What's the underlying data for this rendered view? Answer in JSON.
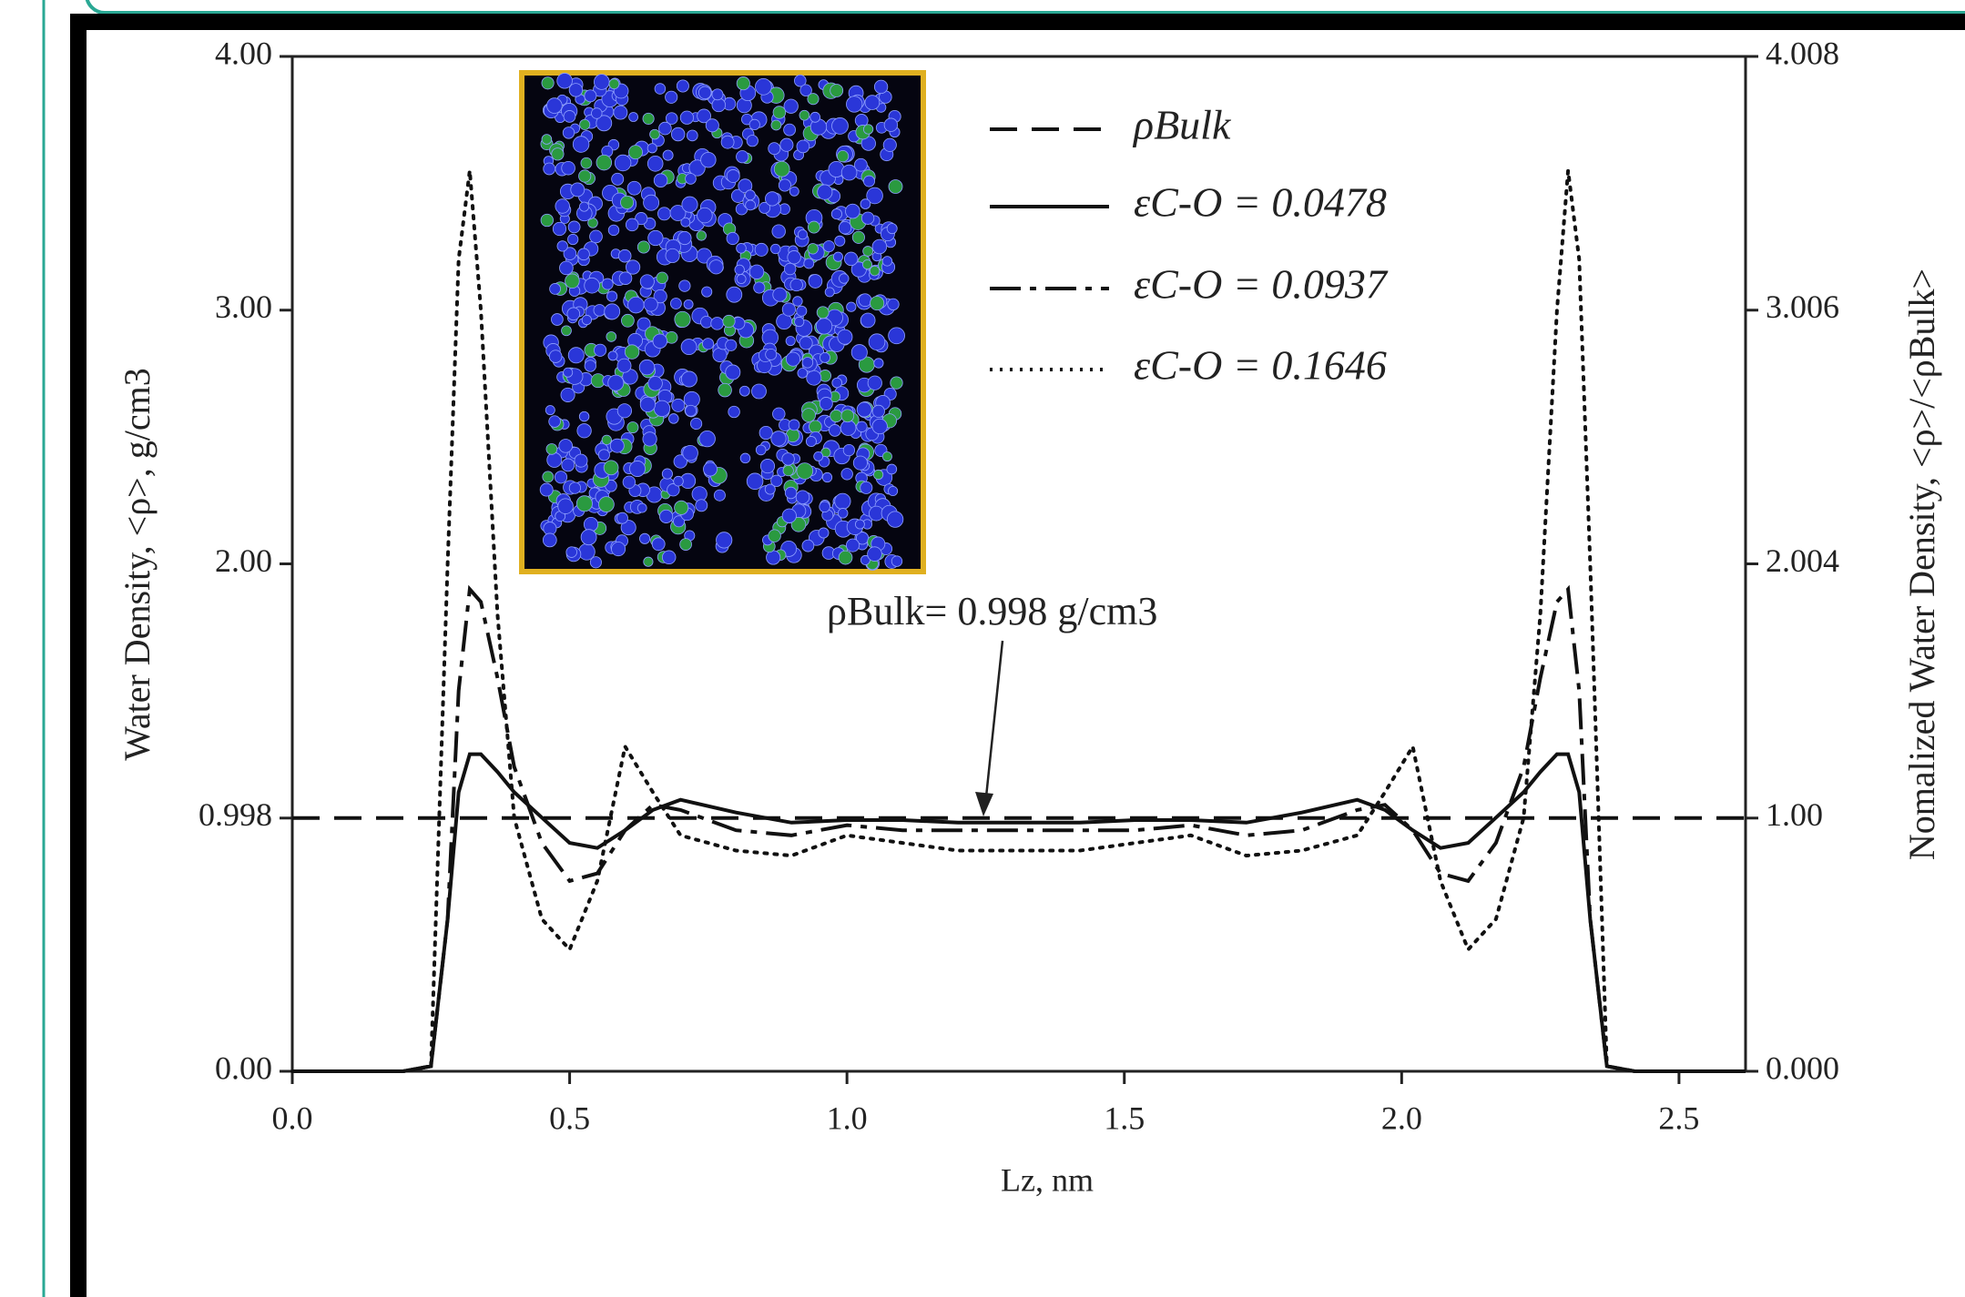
{
  "chart_data": {
    "type": "line",
    "xlabel": "Lz, nm",
    "ylabel": "Water Density, <ρ>, g/cm3",
    "y2label": "Nomalized Water Density, <ρ>/<ρBulk>",
    "annotation": "ρBulk= 0.998 g/cm3",
    "xlim": [
      0,
      2.62
    ],
    "xticks": [
      {
        "value": 0,
        "label": "0.0"
      },
      0.5,
      {
        "value": 1,
        "label": "1.0"
      },
      1.5,
      {
        "value": 2,
        "label": "2.0"
      },
      2.5
    ],
    "ylim": [
      0,
      4
    ],
    "yticks": [
      {
        "value": 0,
        "label": "0.00"
      },
      0.998,
      {
        "value": 2,
        "label": "2.00"
      },
      {
        "value": 3,
        "label": "3.00"
      },
      {
        "value": 4,
        "label": "4.00"
      }
    ],
    "y2lim": [
      0,
      4.008
    ],
    "y2ticks": [
      {
        "value": 0,
        "label": "0.000"
      },
      {
        "value": 1,
        "label": "1.00"
      },
      2.004,
      3.006,
      4.008
    ],
    "x": [
      0,
      0.1,
      0.2,
      0.25,
      0.28,
      0.3,
      0.32,
      0.34,
      0.37,
      0.4,
      0.45,
      0.5,
      0.55,
      0.6,
      0.65,
      0.7,
      0.8,
      0.9,
      1.0,
      1.1,
      1.2,
      1.3,
      1.42,
      1.52,
      1.62,
      1.72,
      1.82,
      1.92,
      1.97,
      2.02,
      2.07,
      2.12,
      2.17,
      2.22,
      2.25,
      2.28,
      2.3,
      2.32,
      2.34,
      2.37,
      2.42,
      2.52,
      2.62
    ],
    "series": [
      {
        "name": "ρBulk",
        "color": "#111111",
        "dash": "dashed",
        "x": [
          0,
          2.62
        ],
        "values": [
          0.998,
          0.998
        ]
      },
      {
        "name": "εC-O = 0.0478",
        "color": "#111111",
        "dash": "solid",
        "values": [
          0,
          0,
          0,
          0.02,
          0.6,
          1.1,
          1.25,
          1.25,
          1.18,
          1.1,
          1.0,
          0.9,
          0.88,
          0.95,
          1.03,
          1.07,
          1.02,
          0.98,
          0.99,
          0.99,
          0.98,
          0.98,
          0.98,
          0.99,
          0.99,
          0.98,
          1.02,
          1.07,
          1.03,
          0.95,
          0.88,
          0.9,
          1.0,
          1.1,
          1.18,
          1.25,
          1.25,
          1.1,
          0.6,
          0.02,
          0,
          0,
          0
        ]
      },
      {
        "name": "εC-O = 0.0937",
        "color": "#111111",
        "dash": "dashdot",
        "values": [
          0,
          0,
          0,
          0.02,
          0.6,
          1.5,
          1.9,
          1.85,
          1.55,
          1.2,
          0.9,
          0.75,
          0.78,
          0.95,
          1.05,
          1.03,
          0.95,
          0.93,
          0.97,
          0.95,
          0.95,
          0.95,
          0.95,
          0.95,
          0.97,
          0.93,
          0.95,
          1.03,
          1.05,
          0.95,
          0.78,
          0.75,
          0.9,
          1.2,
          1.55,
          1.85,
          1.9,
          1.5,
          0.6,
          0.02,
          0,
          0,
          0
        ]
      },
      {
        "name": "εC-O = 0.1646",
        "color": "#111111",
        "dash": "dotted",
        "values": [
          0,
          0,
          0,
          0.02,
          2.0,
          3.2,
          3.55,
          3.0,
          1.8,
          1.0,
          0.6,
          0.48,
          0.75,
          1.28,
          1.1,
          0.93,
          0.87,
          0.85,
          0.93,
          0.9,
          0.87,
          0.87,
          0.87,
          0.9,
          0.93,
          0.85,
          0.87,
          0.93,
          1.1,
          1.28,
          0.75,
          0.48,
          0.6,
          1.0,
          1.8,
          3.0,
          3.55,
          3.2,
          2.0,
          0.02,
          0,
          0,
          0
        ]
      }
    ]
  }
}
